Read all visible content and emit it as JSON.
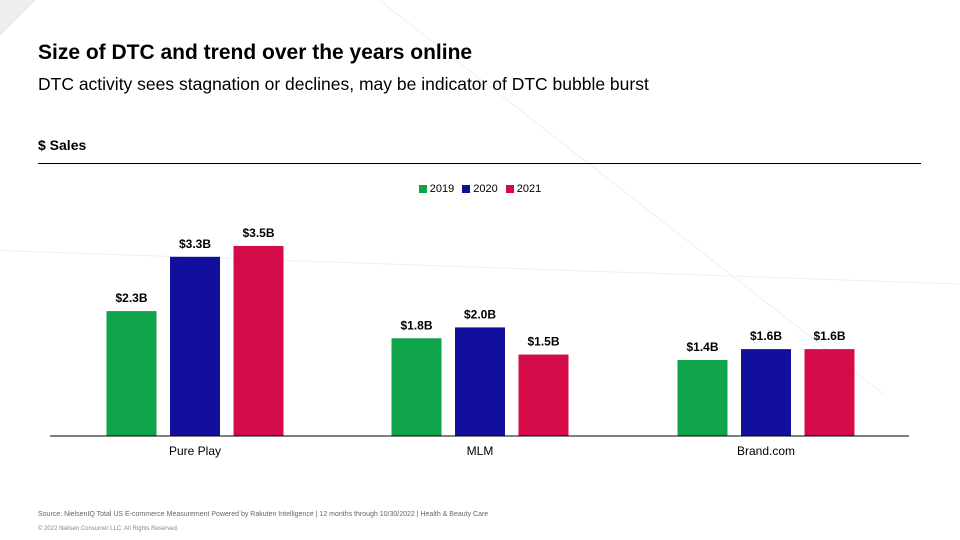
{
  "header": {
    "title": "Size of DTC and trend over the years online",
    "subtitle": "DTC activity sees stagnation or declines, may be indicator of DTC bubble burst",
    "section_label": "$ Sales"
  },
  "chart_data": {
    "type": "bar",
    "categories": [
      "Pure Play",
      "MLM",
      "Brand.com"
    ],
    "series": [
      {
        "name": "2019",
        "values": [
          2.3,
          1.8,
          1.4
        ],
        "labels": [
          "$2.3B",
          "$1.8B",
          "$1.4B"
        ],
        "color": "#0fa34a"
      },
      {
        "name": "2020",
        "values": [
          3.3,
          2.0,
          1.6
        ],
        "labels": [
          "$3.3B",
          "$2.0B",
          "$1.6B"
        ],
        "color": "#110f9c"
      },
      {
        "name": "2021",
        "values": [
          3.5,
          1.5,
          1.6
        ],
        "labels": [
          "$3.5B",
          "$1.5B",
          "$1.6B"
        ],
        "color": "#d40b49"
      }
    ],
    "ylim": [
      0,
      3.6
    ],
    "legend_position": "top-center",
    "grid": false
  },
  "footer": {
    "source": "Source: NielsenIQ Total US E-commerce Measurement  Powered by Rakuten Intelligence  | 12 months through  10/30/2022  | Health & Beauty  Care",
    "copyright": "© 2022 Nielsen Consumer LLC. All Rights Reserved."
  }
}
